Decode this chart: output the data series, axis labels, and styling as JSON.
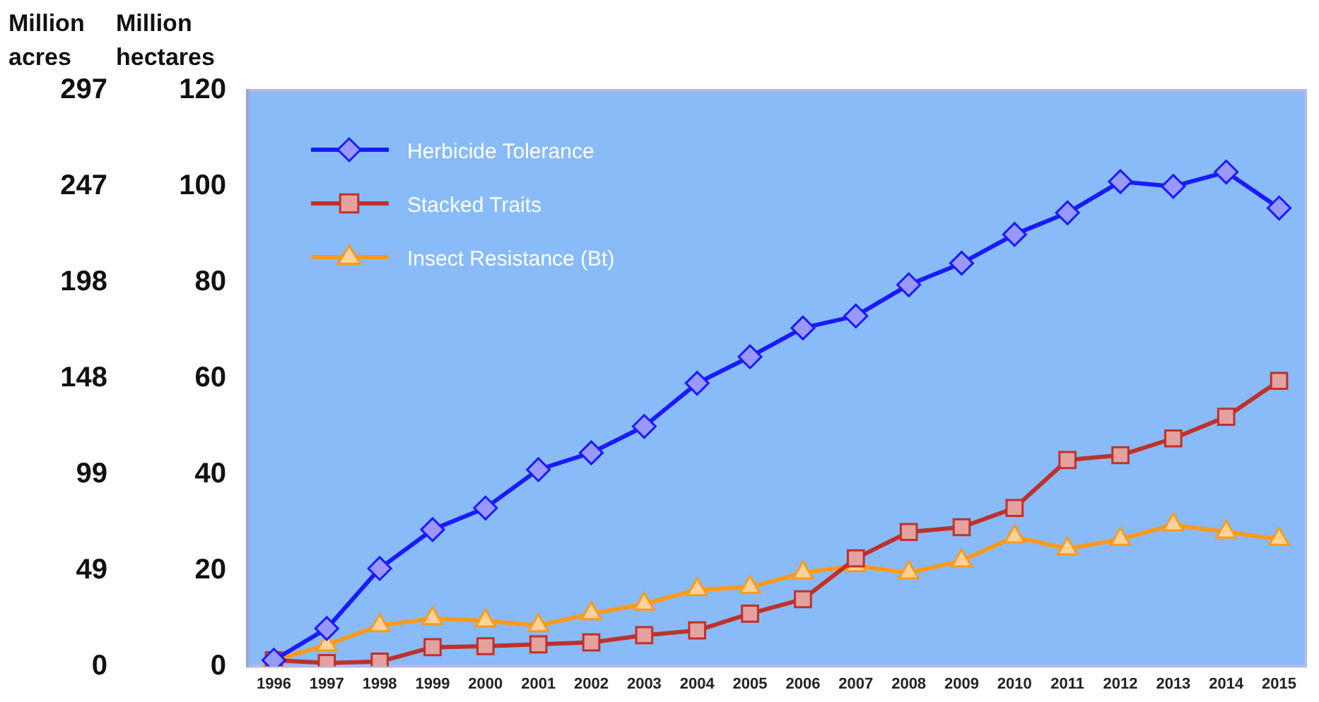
{
  "chart_data": {
    "type": "line",
    "ylabel": "Million hectares",
    "y2label": "Million acres",
    "categories": [
      "1996",
      "1997",
      "1998",
      "1999",
      "2000",
      "2001",
      "2002",
      "2003",
      "2004",
      "2005",
      "2006",
      "2007",
      "2008",
      "2009",
      "2010",
      "2011",
      "2012",
      "2013",
      "2014",
      "2015"
    ],
    "series": [
      {
        "name": "Herbicide Tolerance",
        "color": "#1a1aff",
        "marker": "diamond",
        "values": [
          1.3,
          7.9,
          20.4,
          28.5,
          33,
          41,
          44.5,
          50,
          59,
          64.5,
          70.5,
          73,
          79.5,
          84,
          90,
          94.5,
          101,
          100,
          103,
          95.5
        ]
      },
      {
        "name": "Stacked Traits",
        "color": "#c0302a",
        "marker": "square",
        "values": [
          1.3,
          0.7,
          1,
          4,
          4.2,
          4.6,
          5,
          6.5,
          7.5,
          11,
          14,
          22.5,
          28,
          29,
          33,
          43,
          44,
          47.5,
          52,
          59.5
        ]
      },
      {
        "name": "Insect Resistance (Bt)",
        "color": "#ff9a1a",
        "marker": "triangle",
        "values": [
          1.3,
          4.5,
          8.5,
          10,
          9.5,
          8.5,
          11,
          13,
          16,
          16.5,
          19.5,
          21,
          19.5,
          22,
          27,
          24.5,
          26.5,
          29.5,
          28,
          26.5
        ]
      }
    ],
    "ylim": [
      0,
      120
    ],
    "yticks": [
      0,
      20,
      40,
      60,
      80,
      100,
      120
    ],
    "y2lim": [
      0,
      296.5
    ],
    "y2ticks": [
      {
        "value": 0,
        "label": "0"
      },
      {
        "value": 49.4,
        "label": "49"
      },
      {
        "value": 98.8,
        "label": "99"
      },
      {
        "value": 148.3,
        "label": "148"
      },
      {
        "value": 197.7,
        "label": "198"
      },
      {
        "value": 247.1,
        "label": "247"
      },
      {
        "value": 296.5,
        "label": "297"
      }
    ],
    "grid": false,
    "legend": "top left"
  }
}
